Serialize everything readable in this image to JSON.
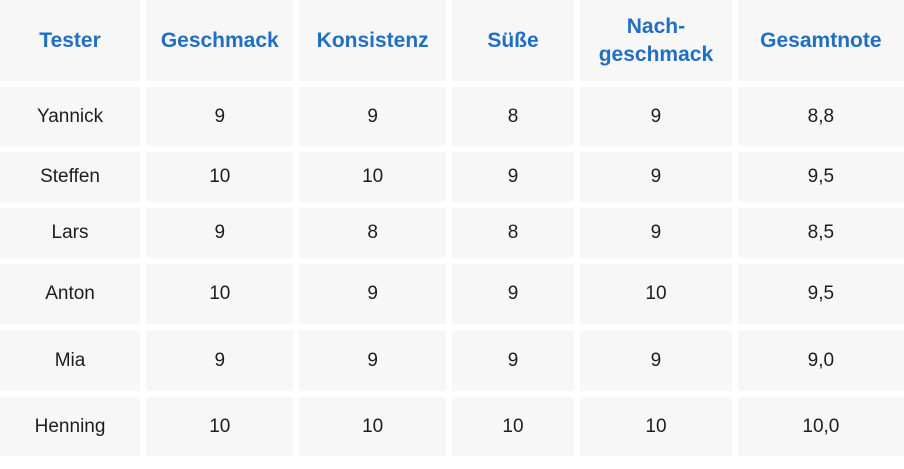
{
  "table": {
    "headers": [
      "Tester",
      "Geschmack",
      "Konsistenz",
      "Süße",
      "Nach-geschmack",
      "Gesamtnote"
    ],
    "header_display": {
      "col4_line1": "Nach-",
      "col4_line2": "geschmack"
    },
    "rows": [
      [
        "Yannick",
        "9",
        "9",
        "8",
        "9",
        "8,8"
      ],
      [
        "Steffen",
        "10",
        "10",
        "9",
        "9",
        "9,5"
      ],
      [
        "Lars",
        "9",
        "8",
        "8",
        "9",
        "8,5"
      ],
      [
        "Anton",
        "10",
        "9",
        "9",
        "10",
        "9,5"
      ],
      [
        "Mia",
        "9",
        "9",
        "9",
        "9",
        "9,0"
      ],
      [
        "Henning",
        "10",
        "10",
        "10",
        "10",
        "10,0"
      ]
    ]
  },
  "colors": {
    "header_text": "#1f6fc4",
    "cell_background": "#f7f7f8",
    "body_text": "#1d1d1d"
  }
}
